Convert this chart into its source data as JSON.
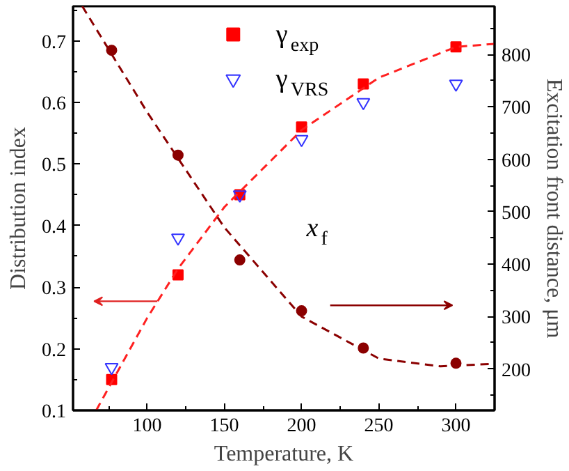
{
  "chart_data": {
    "type": "scatter",
    "xlabel": "Temperature, K",
    "ylabel": "Distribution index",
    "y2label": "Excitation front distance, μm",
    "xlim": [
      52,
      325
    ],
    "xticks": [
      100,
      150,
      200,
      250,
      300
    ],
    "ylim": [
      0.1,
      0.756
    ],
    "yticks": [
      0.1,
      0.2,
      0.3,
      0.4,
      0.5,
      0.6,
      0.7
    ],
    "y2lim": [
      121,
      892
    ],
    "y2ticks": [
      200,
      300,
      400,
      500,
      600,
      700,
      800
    ],
    "legend": "top",
    "grid": false,
    "series": [
      {
        "name": "γ$_{exp}$",
        "color": "#ff0000",
        "marker": "square",
        "x": [
          77,
          120,
          160,
          200,
          240,
          300
        ],
        "values": [
          0.15,
          0.32,
          0.45,
          0.56,
          0.63,
          0.69
        ]
      },
      {
        "name": "γ$_{VRS}$",
        "color": "#3333ff",
        "marker": "triangle",
        "x": [
          77,
          120,
          160,
          200,
          240,
          300
        ],
        "values": [
          0.17,
          0.38,
          0.45,
          0.54,
          0.6,
          0.63
        ]
      },
      {
        "name": "x$_{f}$",
        "color": "#8b0000",
        "marker": "circle",
        "axis": "y2",
        "x": [
          77,
          120,
          160,
          200,
          240,
          300
        ],
        "values": [
          808,
          608,
          408,
          311,
          240,
          211
        ]
      },
      {
        "type": "line",
        "color": "#ff2020",
        "line_style": "dashed",
        "x": [
          67,
          100,
          120,
          150,
          200,
          250,
          300,
          325
        ],
        "values": [
          0.1,
          0.25,
          0.33,
          0.43,
          0.555,
          0.64,
          0.69,
          0.695
        ]
      },
      {
        "type": "line",
        "color": "#8b0000",
        "line_style": "dashed",
        "axis": "y2",
        "x": [
          58,
          100,
          150,
          200,
          250,
          290,
          325
        ],
        "values": [
          892,
          690,
          470,
          300,
          220,
          205,
          210
        ]
      }
    ]
  }
}
